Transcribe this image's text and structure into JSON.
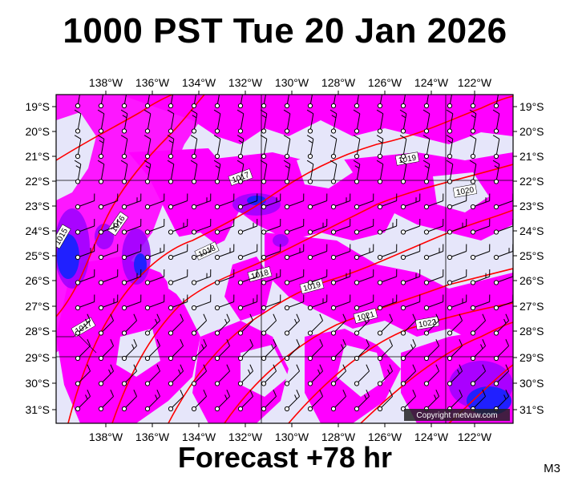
{
  "header": {
    "title": "1000 PST Tue 20 Jan 2026"
  },
  "footer": {
    "forecast": "Forecast +78 hr",
    "model_tag": "M3"
  },
  "map": {
    "copyright": "Copyright metvuw.com",
    "lon_labels": [
      "138°W",
      "136°W",
      "134°W",
      "132°W",
      "130°W",
      "128°W",
      "126°W",
      "124°W",
      "122°W"
    ],
    "lat_labels": [
      "19°S",
      "20°S",
      "21°S",
      "22°S",
      "23°S",
      "24°S",
      "25°S",
      "26°S",
      "27°S",
      "28°S",
      "29°S",
      "30°S",
      "31°S"
    ],
    "colors": {
      "background_low": "#e6e6fa",
      "precip_light": "#ff00ff",
      "precip_medium": "#9b00ff",
      "precip_heavy": "#2020ff",
      "isobar": "#ff0000",
      "grid": "#000000"
    },
    "isobar_labels": [
      "1015",
      "1016",
      "1017",
      "1017",
      "1018",
      "1018",
      "1019",
      "1019",
      "1020",
      "1021",
      "1022"
    ]
  }
}
